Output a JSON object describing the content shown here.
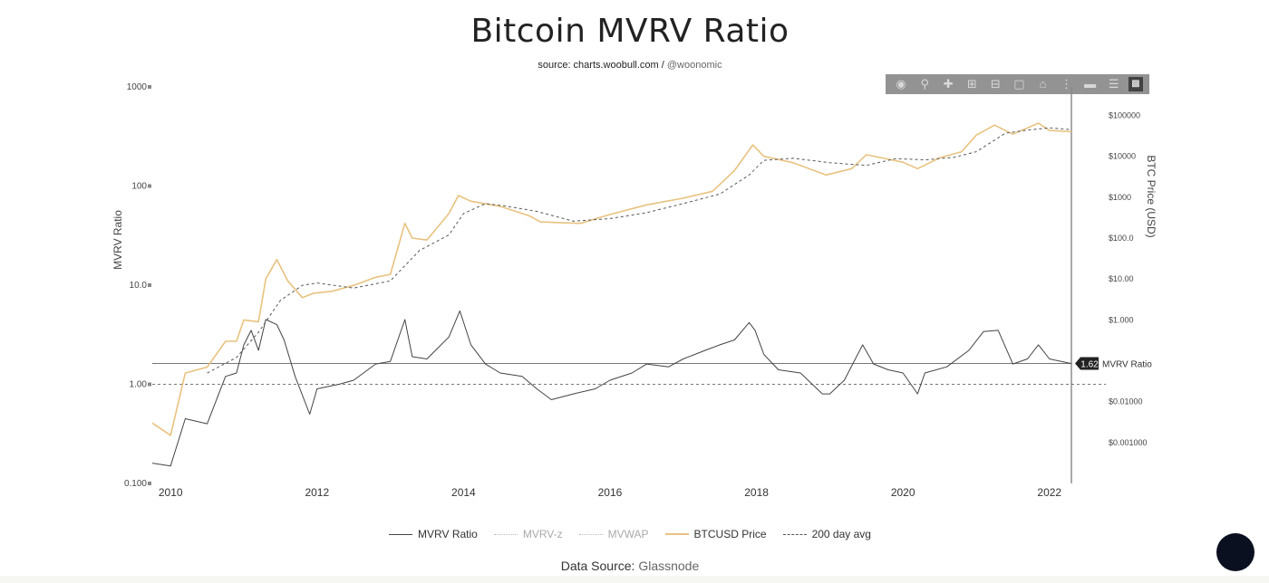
{
  "title": "Bitcoin MVRV Ratio",
  "subtitle": {
    "prefix": "source: charts.woobull.com",
    "sep": " / ",
    "handle": "@woonomic"
  },
  "toolbar": {
    "icons": [
      "camera-icon",
      "zoom-icon",
      "pan-icon",
      "zoom-in-icon",
      "zoom-out-icon",
      "autoscale-icon",
      "home-icon",
      "spike-lines-icon",
      "hover-closest-icon",
      "hover-compare-icon",
      "plotly-logo-icon"
    ]
  },
  "chart_data": {
    "type": "line",
    "title": "Bitcoin MVRV Ratio",
    "xlabel": "",
    "ylabel": "MVRV Ratio",
    "y2label": "BTC Price (USD)",
    "x_range": [
      2009.75,
      2022.3
    ],
    "y_left_scale": "log",
    "y_left_range": [
      0.1,
      1000
    ],
    "y_left_ticks": [
      "0.100",
      "1.00",
      "10.0",
      "100",
      "1000"
    ],
    "y_right_scale": "log",
    "y_right_range": [
      0.0001,
      500000
    ],
    "y_right_ticks": [
      "$0.001000",
      "$0.01000",
      "$1.000",
      "$10.00",
      "$100.0",
      "$1000",
      "$10000",
      "$100000"
    ],
    "x_ticks": [
      "2010",
      "2012",
      "2014",
      "2016",
      "2018",
      "2020",
      "2022"
    ],
    "reference_lines": [
      {
        "name": "current",
        "value": 1.62,
        "label": "1.62",
        "text": "MVRV Ratio",
        "style": "solid"
      },
      {
        "name": "one",
        "value": 1.0,
        "style": "dashed"
      }
    ],
    "legend_position": "bottom",
    "series": [
      {
        "name": "MVRV Ratio",
        "axis": "left",
        "color": "#444444",
        "x": [
          2009.75,
          2010.0,
          2010.2,
          2010.5,
          2010.75,
          2010.9,
          2011.0,
          2011.1,
          2011.2,
          2011.3,
          2011.45,
          2011.55,
          2011.7,
          2011.9,
          2012.0,
          2012.3,
          2012.5,
          2012.8,
          2013.0,
          2013.2,
          2013.3,
          2013.5,
          2013.8,
          2013.95,
          2014.1,
          2014.3,
          2014.5,
          2014.8,
          2015.0,
          2015.2,
          2015.5,
          2015.8,
          2016.0,
          2016.3,
          2016.5,
          2016.8,
          2017.0,
          2017.3,
          2017.5,
          2017.7,
          2017.9,
          2017.98,
          2018.1,
          2018.3,
          2018.6,
          2018.9,
          2019.0,
          2019.2,
          2019.45,
          2019.6,
          2019.8,
          2020.0,
          2020.2,
          2020.3,
          2020.6,
          2020.9,
          2021.1,
          2021.3,
          2021.5,
          2021.7,
          2021.85,
          2022.0,
          2022.3
        ],
        "values": [
          0.16,
          0.15,
          0.45,
          0.4,
          1.2,
          1.3,
          2.5,
          3.5,
          2.2,
          4.5,
          4.0,
          2.8,
          1.2,
          0.5,
          0.9,
          1.0,
          1.1,
          1.6,
          1.7,
          4.5,
          1.9,
          1.8,
          3.0,
          5.5,
          2.5,
          1.6,
          1.3,
          1.2,
          0.9,
          0.7,
          0.8,
          0.9,
          1.1,
          1.3,
          1.6,
          1.5,
          1.8,
          2.2,
          2.5,
          2.8,
          4.2,
          3.5,
          2.0,
          1.4,
          1.3,
          0.8,
          0.8,
          1.1,
          2.5,
          1.6,
          1.4,
          1.3,
          0.8,
          1.3,
          1.5,
          2.2,
          3.4,
          3.5,
          1.6,
          1.8,
          2.5,
          1.8,
          1.62
        ]
      },
      {
        "name": "MVRV-z",
        "axis": "left",
        "color": "#cccccc",
        "visible": false,
        "x": [],
        "values": []
      },
      {
        "name": "MVWAP",
        "axis": "left",
        "color": "#cccccc",
        "visible": false,
        "x": [],
        "values": []
      },
      {
        "name": "BTCUSD Price",
        "axis": "right",
        "color": "#e8c27f",
        "x": [
          2009.75,
          2010.0,
          2010.2,
          2010.5,
          2010.75,
          2010.9,
          2011.0,
          2011.2,
          2011.3,
          2011.45,
          2011.6,
          2011.8,
          2011.95,
          2012.2,
          2012.5,
          2012.8,
          2013.0,
          2013.2,
          2013.3,
          2013.5,
          2013.8,
          2013.93,
          2014.1,
          2014.5,
          2014.9,
          2015.05,
          2015.3,
          2015.6,
          2016.0,
          2016.5,
          2017.0,
          2017.4,
          2017.7,
          2017.95,
          2018.1,
          2018.5,
          2018.95,
          2019.3,
          2019.5,
          2019.8,
          2020.0,
          2020.2,
          2020.5,
          2020.8,
          2021.0,
          2021.25,
          2021.5,
          2021.85,
          2022.0,
          2022.3
        ],
        "values": [
          0.003,
          0.0015,
          0.05,
          0.07,
          0.3,
          0.3,
          1.0,
          0.9,
          10,
          30,
          9,
          3.5,
          4.5,
          5,
          7,
          11,
          13,
          230,
          100,
          90,
          400,
          1100,
          800,
          600,
          350,
          250,
          240,
          230,
          380,
          650,
          950,
          1400,
          4500,
          19000,
          10000,
          7000,
          3500,
          5000,
          11000,
          8500,
          7200,
          5000,
          9200,
          13000,
          33000,
          58000,
          35000,
          65000,
          43000,
          40000
        ]
      },
      {
        "name": "200 day avg",
        "axis": "right",
        "color": "#555555",
        "x": [
          2010.5,
          2010.9,
          2011.2,
          2011.5,
          2011.8,
          2012.0,
          2012.5,
          2013.0,
          2013.4,
          2013.8,
          2014.0,
          2014.3,
          2014.6,
          2015.0,
          2015.5,
          2016.0,
          2016.5,
          2017.0,
          2017.5,
          2017.9,
          2018.1,
          2018.5,
          2019.0,
          2019.5,
          2019.9,
          2020.3,
          2020.7,
          2021.0,
          2021.4,
          2021.7,
          2022.0,
          2022.3
        ],
        "values": [
          0.05,
          0.12,
          0.5,
          3,
          7,
          8,
          6,
          9,
          50,
          120,
          400,
          700,
          600,
          450,
          260,
          300,
          420,
          700,
          1200,
          3500,
          8000,
          9000,
          7000,
          6000,
          8800,
          8200,
          9500,
          13000,
          37000,
          44000,
          50000,
          45000
        ]
      }
    ]
  },
  "legend": {
    "items": [
      {
        "label": "MVRV Ratio",
        "style": "solid",
        "color": "#444444"
      },
      {
        "label": "MVRV-z",
        "style": "dotted",
        "color": "#bbbbbb"
      },
      {
        "label": "MVWAP",
        "style": "dotted",
        "color": "#bbbbbb"
      },
      {
        "label": "BTCUSD Price",
        "style": "solid",
        "color": "#e8c27f"
      },
      {
        "label": "200 day avg",
        "style": "dashed",
        "color": "#555555"
      }
    ]
  },
  "footer": {
    "prefix": "Data Source: ",
    "source": "Glassnode"
  }
}
